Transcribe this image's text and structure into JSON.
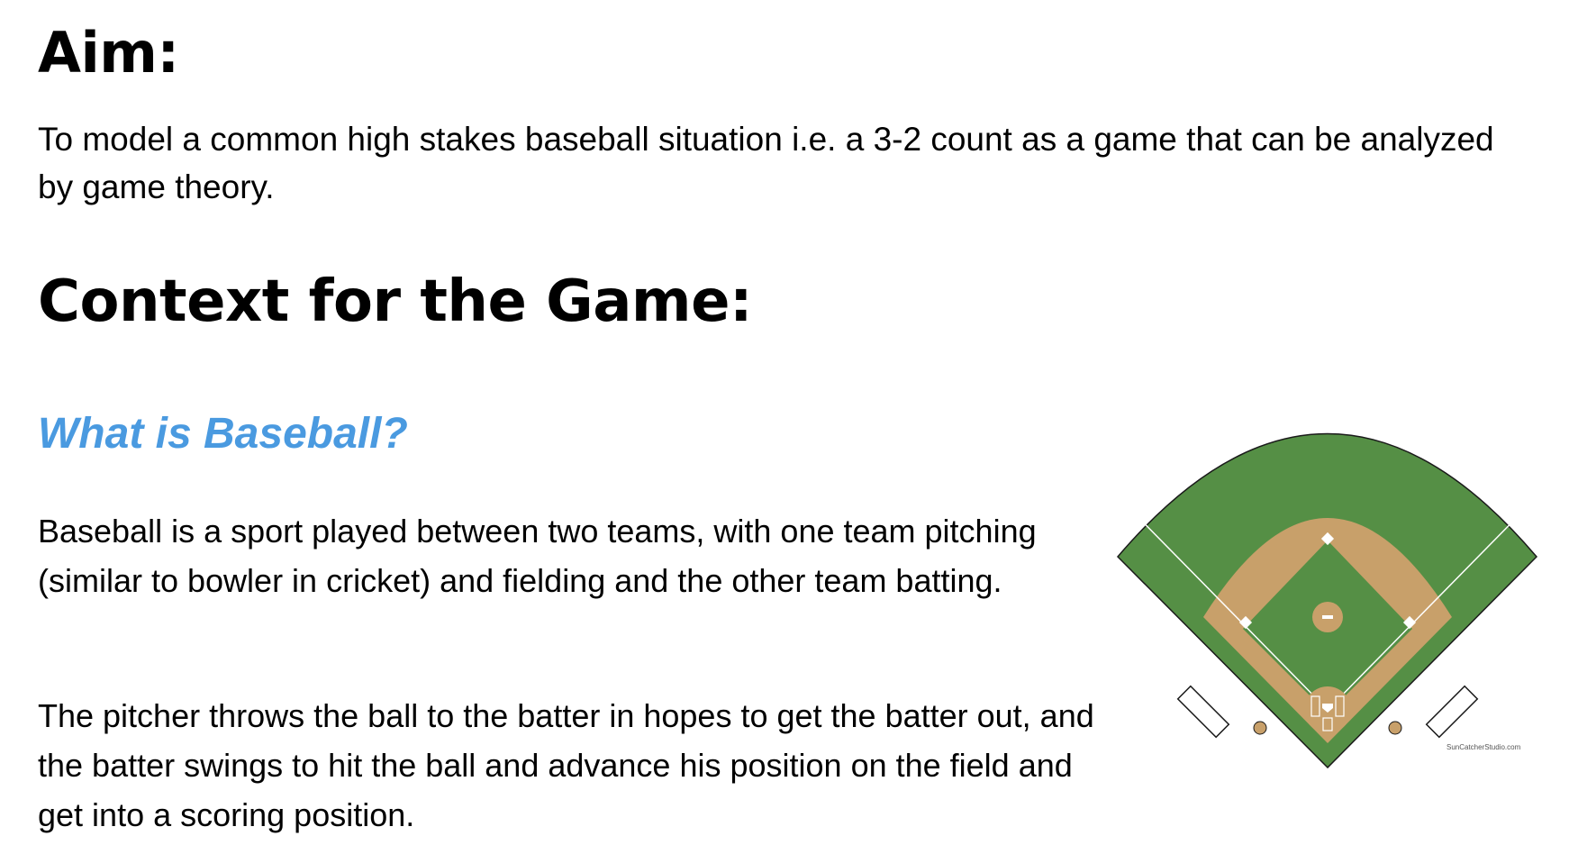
{
  "aim": {
    "heading": "Aim:",
    "text": "To model a common high stakes baseball situation i.e. a 3-2 count as a game that can be analyzed by game theory."
  },
  "context": {
    "heading": "Context for the Game:",
    "subheading": "What is Baseball?",
    "subheading_color": "#4a9ae0",
    "paragraphs": [
      "Baseball is a sport played between two teams, with one team pitching (similar to bowler in cricket) and fielding and the other team batting.",
      "The pitcher throws the ball to the batter in hopes to get the batter out, and the batter swings to hit the ball and advance his position on the field and get into a scoring position."
    ]
  },
  "diagram": {
    "watermark": "SunCatcherStudio.com",
    "colors": {
      "grass": "#558f45",
      "dirt": "#c8a06a",
      "lines": "#ffffff",
      "outline": "#1a1a1a"
    }
  }
}
